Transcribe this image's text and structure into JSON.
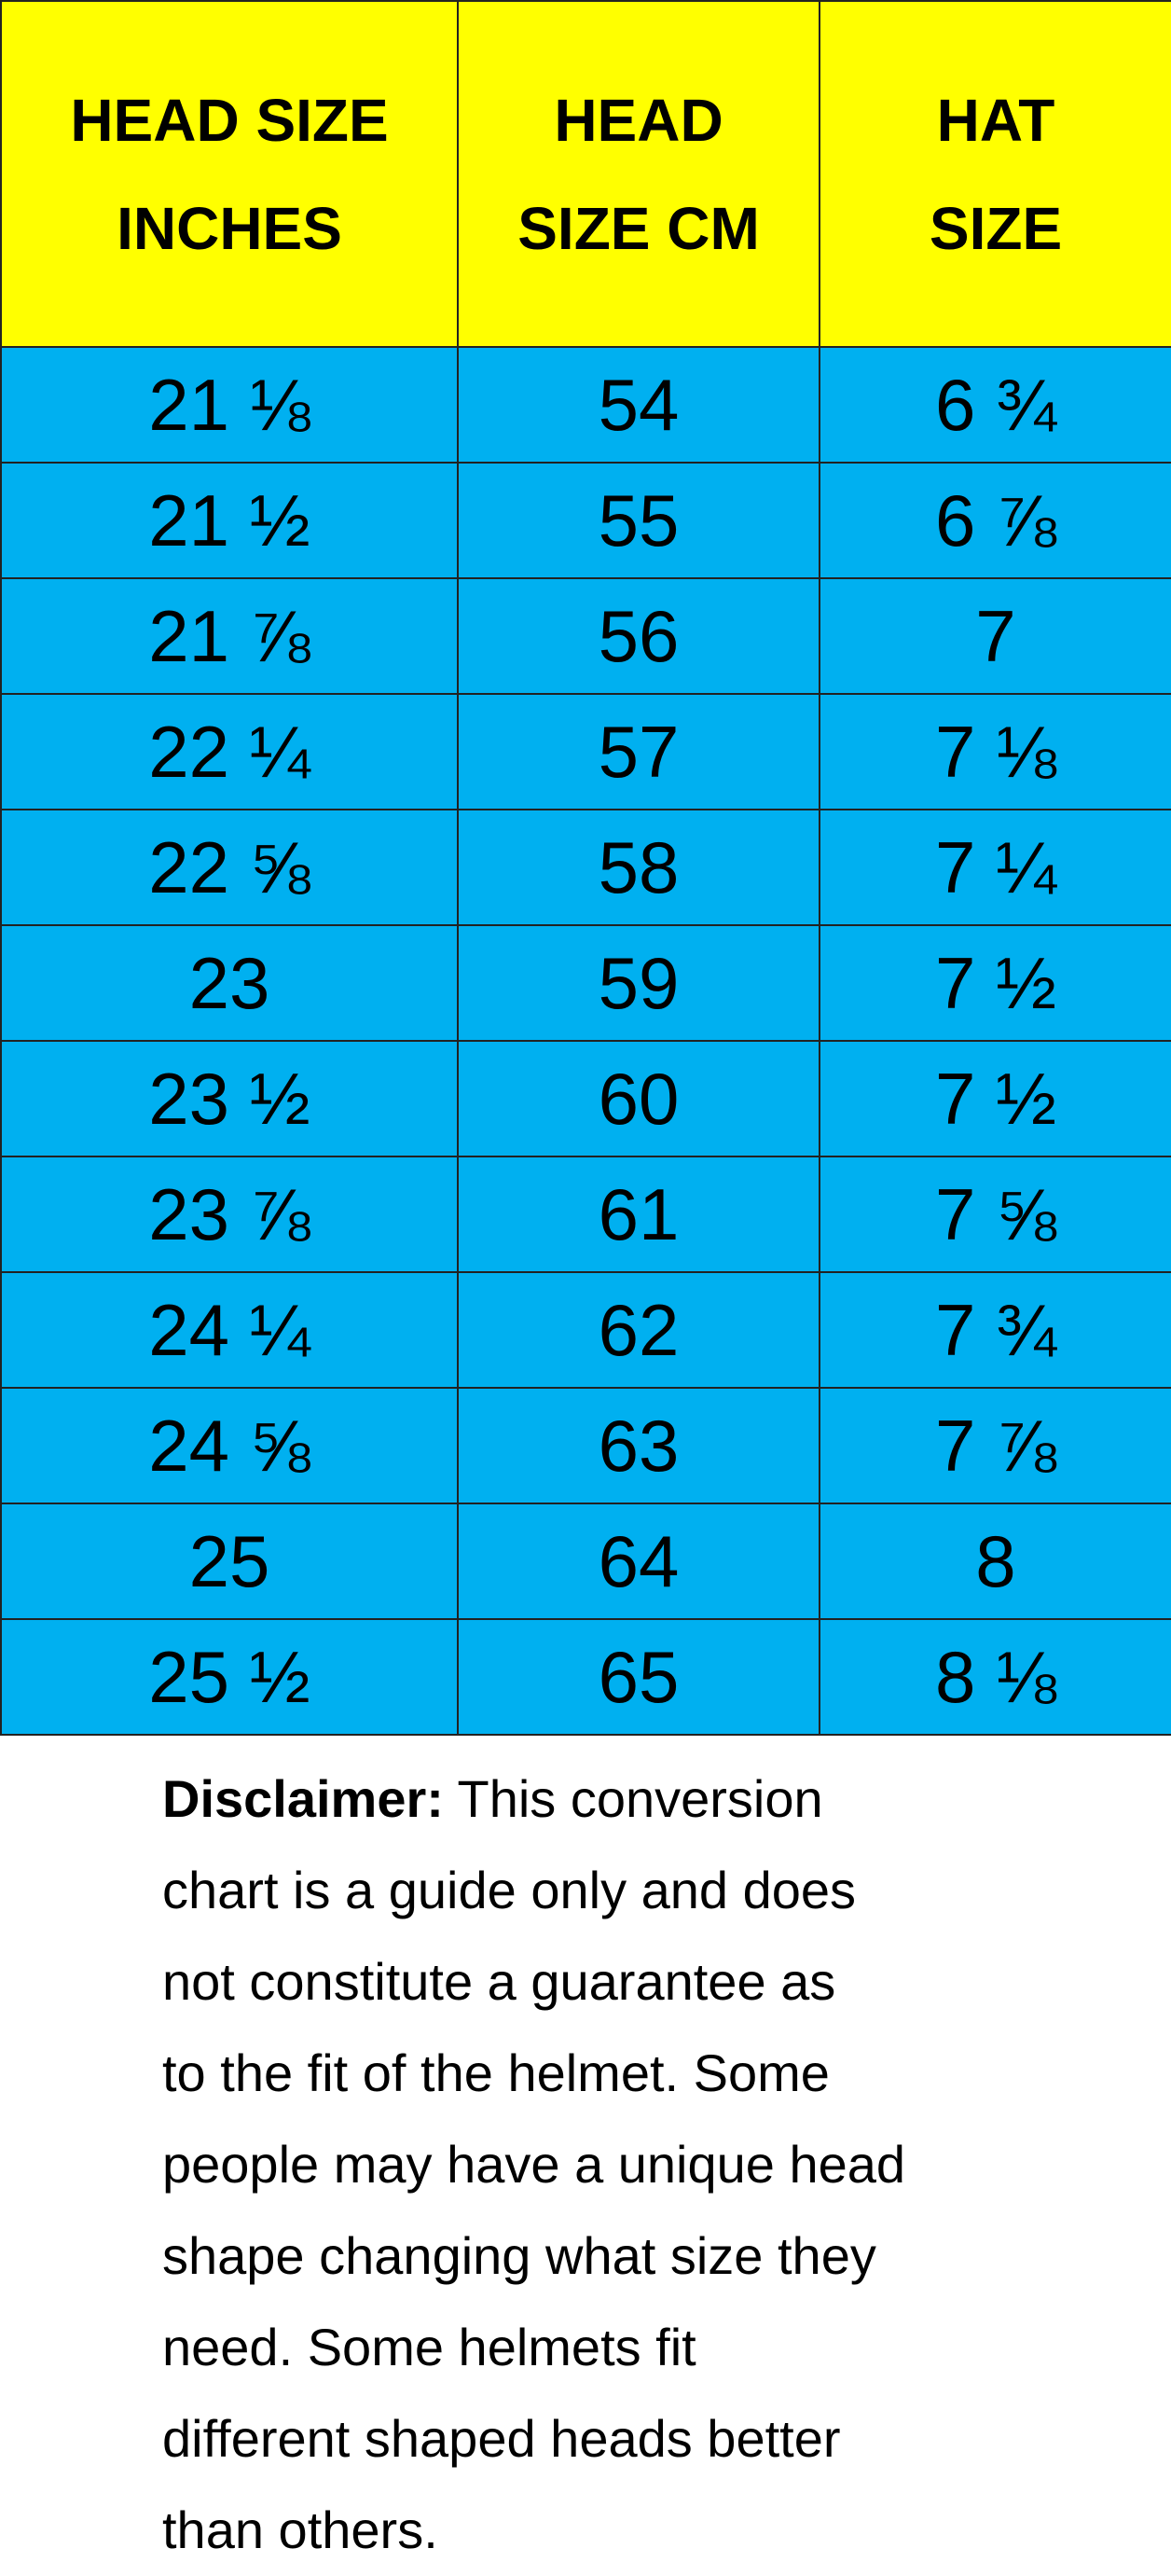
{
  "table": {
    "header": [
      [
        "HEAD SIZE",
        "INCHES"
      ],
      [
        "HEAD",
        "SIZE CM"
      ],
      [
        "HAT",
        "SIZE"
      ]
    ],
    "rows": [
      [
        "21 ⅛",
        "54",
        "6 ¾"
      ],
      [
        "21 ½",
        "55",
        "6 ⅞"
      ],
      [
        "21 ⅞",
        "56",
        "7"
      ],
      [
        "22 ¼",
        "57",
        "7 ⅛"
      ],
      [
        "22 ⅝",
        "58",
        "7 ¼"
      ],
      [
        "23",
        "59",
        "7 ½"
      ],
      [
        "23 ½",
        "60",
        "7 ½"
      ],
      [
        "23 ⅞",
        "61",
        "7 ⅝"
      ],
      [
        "24 ¼",
        "62",
        "7 ¾"
      ],
      [
        "24 ⅝",
        "63",
        "7 ⅞"
      ],
      [
        "25",
        "64",
        "8"
      ],
      [
        "25 ½",
        "65",
        "8 ⅛"
      ]
    ]
  },
  "disclaimer": {
    "label": "Disclaimer:",
    "lines": [
      "This conversion",
      "chart is a guide only and does",
      "not constitute a guarantee as",
      "to the fit of the helmet. Some",
      "people may have a unique head",
      "shape changing what size they",
      "need. Some helmets fit",
      "different shaped heads better",
      "than others."
    ]
  }
}
